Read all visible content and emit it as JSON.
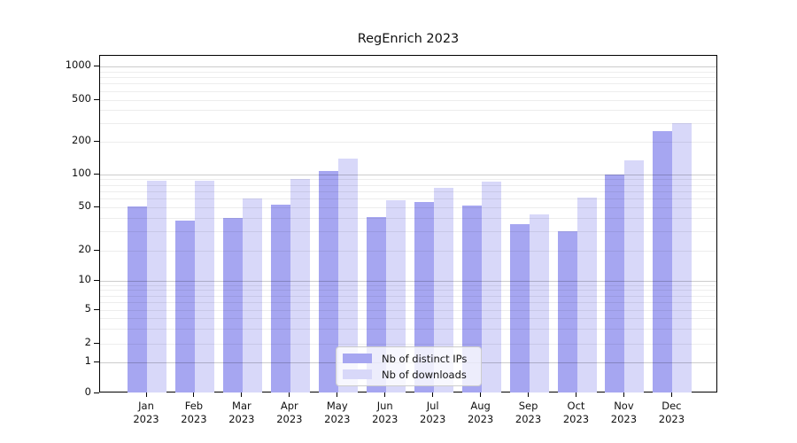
{
  "chart_data": {
    "type": "bar",
    "title": "RegEnrich 2023",
    "categories": [
      "Jan",
      "Feb",
      "Mar",
      "Apr",
      "May",
      "Jun",
      "Jul",
      "Aug",
      "Sep",
      "Oct",
      "Nov",
      "Dec"
    ],
    "category_year": "2023",
    "series": [
      {
        "name": "Nb of distinct IPs",
        "color": "#a6a6f1",
        "values": [
          51,
          38,
          40,
          53,
          107,
          41,
          56,
          52,
          35,
          30,
          100,
          250
        ]
      },
      {
        "name": "Nb of downloads",
        "color": "#d8d8f9",
        "values": [
          87,
          87,
          60,
          90,
          140,
          58,
          75,
          85,
          43,
          61,
          135,
          300
        ]
      }
    ],
    "yaxis": {
      "scale": "symlog",
      "tick_labels": [
        "0",
        "1",
        "2",
        "5",
        "10",
        "20",
        "50",
        "100",
        "200",
        "500",
        "1000"
      ],
      "tick_values": [
        0,
        1,
        2,
        5,
        10,
        20,
        50,
        100,
        200,
        500,
        1000
      ],
      "minor_gridline_values": [
        2,
        3,
        4,
        5,
        6,
        7,
        8,
        9,
        20,
        30,
        40,
        50,
        60,
        70,
        80,
        90,
        200,
        300,
        400,
        500,
        600,
        700,
        800,
        900
      ],
      "major_gridline_values": [
        1,
        10,
        100,
        1000
      ],
      "range": [
        0,
        1000
      ]
    },
    "grid": true,
    "legend_position": "lower center",
    "colors": {
      "background": "#ffffff",
      "spine": "#000000",
      "text": "#111111"
    }
  }
}
